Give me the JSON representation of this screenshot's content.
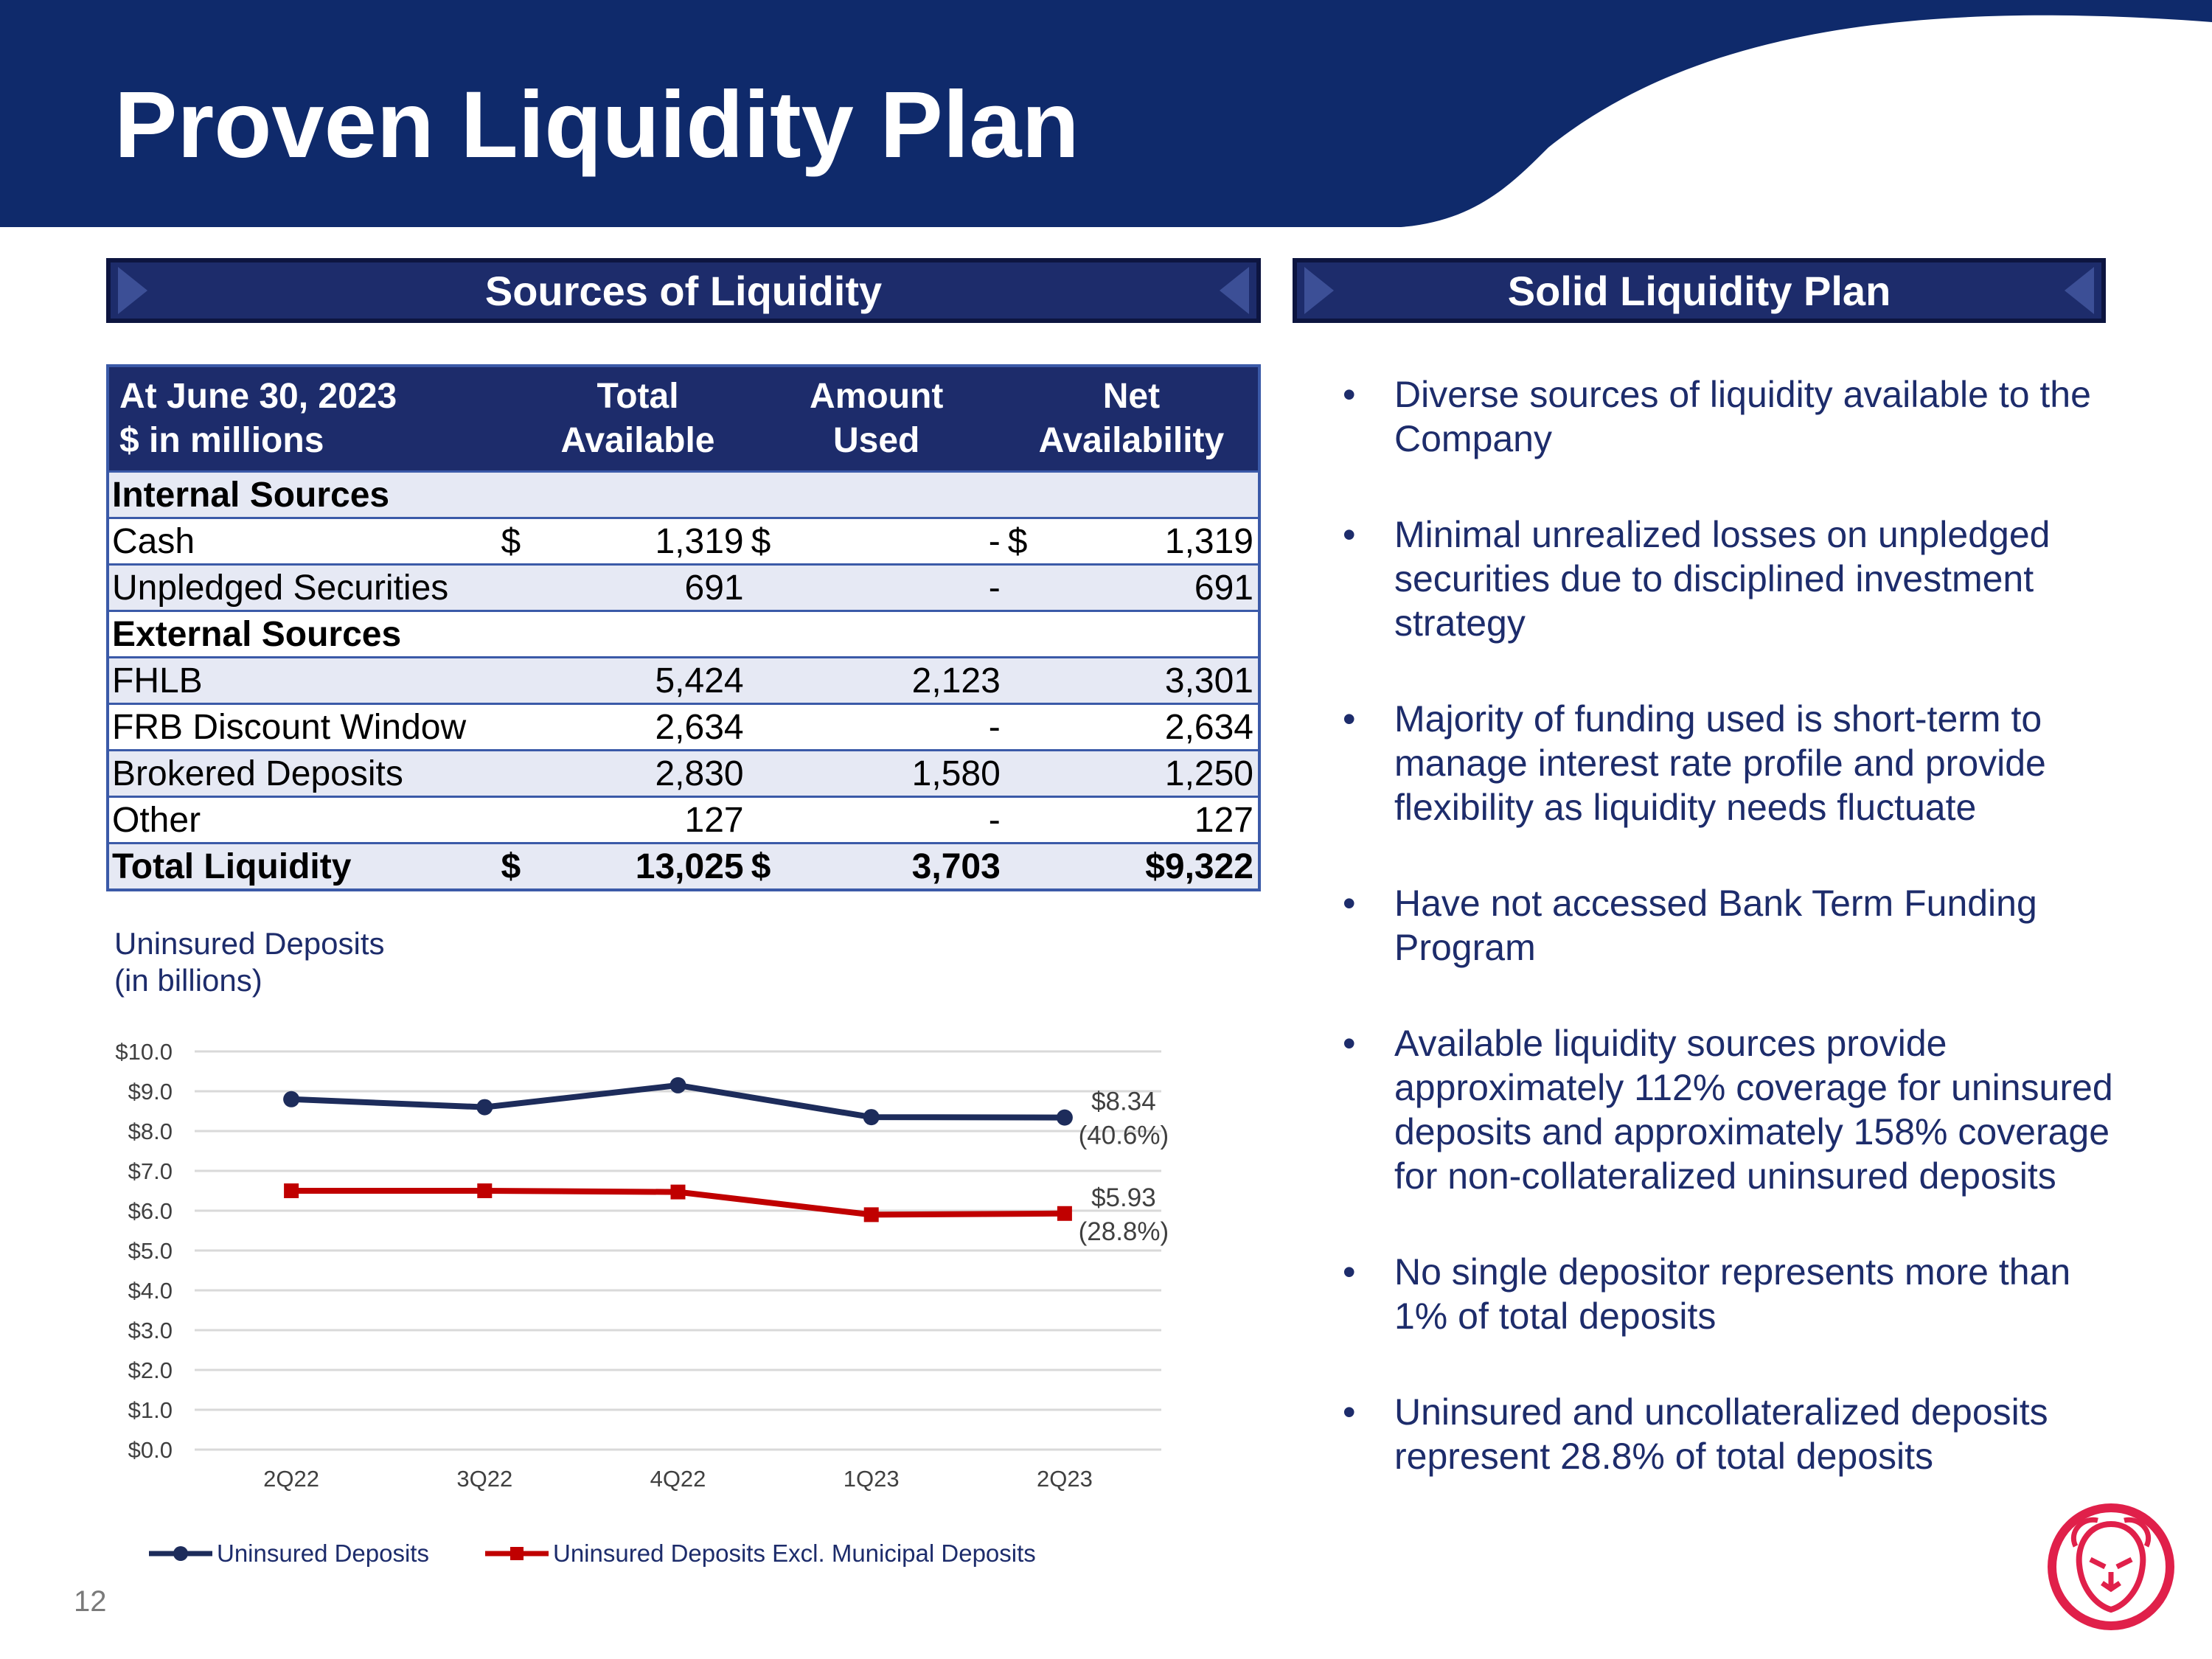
{
  "slide": {
    "title": "Proven Liquidity Plan",
    "page_number": "12"
  },
  "sources": {
    "heading": "Sources of Liquidity",
    "header": {
      "col1_line1": "At June 30, 2023",
      "col1_line2": "$ in millions",
      "col2_line1": "Total",
      "col2_line2": "Available",
      "col3_line1": "Amount",
      "col3_line2": "Used",
      "col4_line1": "Net",
      "col4_line2": "Availability"
    },
    "section_internal": "Internal Sources",
    "section_external": "External Sources",
    "rows": [
      {
        "label": "Cash",
        "cur1": "$",
        "total": "1,319",
        "cur2": "$",
        "used": "-",
        "cur3": "$",
        "net": "1,319"
      },
      {
        "label": "Unpledged Securities",
        "cur1": "",
        "total": "691",
        "cur2": "",
        "used": "-",
        "cur3": "",
        "net": "691"
      },
      {
        "label": "FHLB",
        "cur1": "",
        "total": "5,424",
        "cur2": "",
        "used": "2,123",
        "cur3": "",
        "net": "3,301"
      },
      {
        "label": "FRB Discount Window",
        "cur1": "",
        "total": "2,634",
        "cur2": "",
        "used": "-",
        "cur3": "",
        "net": "2,634"
      },
      {
        "label": "Brokered Deposits",
        "cur1": "",
        "total": "2,830",
        "cur2": "",
        "used": "1,580",
        "cur3": "",
        "net": "1,250"
      },
      {
        "label": "Other",
        "cur1": "",
        "total": "127",
        "cur2": "",
        "used": "-",
        "cur3": "",
        "net": "127"
      }
    ],
    "total_row": {
      "label": "Total Liquidity",
      "cur1": "$",
      "total": "13,025",
      "cur2": "$",
      "used": "3,703",
      "net": "$9,322"
    }
  },
  "plan": {
    "heading": "Solid Liquidity Plan",
    "bullet_char": "•",
    "bullets": [
      "Diverse sources of liquidity available to the Company",
      "Minimal unrealized losses on unpledged securities due to disciplined investment strategy",
      "Majority of funding used is short-term to manage interest rate profile and provide flexibility as liquidity needs fluctuate",
      "Have not accessed Bank Term Funding Program",
      "Available liquidity sources provide approximately 112% coverage for uninsured deposits and approximately 158% coverage for non-collateralized uninsured deposits",
      "No single depositor represents more than 1% of total deposits",
      "Uninsured and uncollateralized deposits represent 28.8% of total deposits"
    ]
  },
  "chart_data": {
    "type": "line",
    "title_line1": "Uninsured Deposits",
    "title_line2": "(in billions)",
    "categories": [
      "2Q22",
      "3Q22",
      "4Q22",
      "1Q23",
      "2Q23"
    ],
    "ylim": [
      0,
      10
    ],
    "yticks": [
      "$0.0",
      "$1.0",
      "$2.0",
      "$3.0",
      "$4.0",
      "$5.0",
      "$6.0",
      "$7.0",
      "$8.0",
      "$9.0",
      "$10.0"
    ],
    "grid": true,
    "legend_position": "bottom",
    "series": [
      {
        "name": "Uninsured Deposits",
        "values": [
          8.8,
          8.6,
          9.15,
          8.35,
          8.34
        ],
        "color": "#1d2c5b",
        "marker": "circle",
        "end_label_line1": "$8.34",
        "end_label_line2": "(40.6%)"
      },
      {
        "name": "Uninsured Deposits Excl. Municipal Deposits",
        "values": [
          6.5,
          6.5,
          6.47,
          5.9,
          5.93
        ],
        "color": "#c00000",
        "marker": "square",
        "end_label_line1": "$5.93",
        "end_label_line2": "(28.8%)"
      }
    ]
  },
  "colors": {
    "navy": "#1d2c6b",
    "header_band": "#0f2a6b",
    "table_border": "#3b5aa8",
    "row_shade": "#e6e9f4",
    "logo_red": "#e0204a"
  },
  "icons": {
    "logo": "lion-head-logo"
  }
}
